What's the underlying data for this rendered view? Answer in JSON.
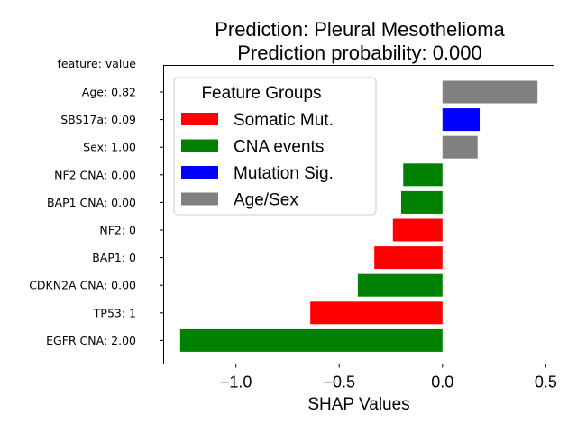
{
  "chart_data": {
    "type": "bar",
    "orientation": "horizontal",
    "title": "Prediction: Pleural Mesothelioma",
    "subtitle": "Prediction probability: 0.000",
    "xlabel": "SHAP Values",
    "ylabel": "",
    "y_header": "feature: value",
    "xlim": [
      -1.35,
      0.54
    ],
    "xticks": [
      -1.0,
      -0.5,
      0.0,
      0.5
    ],
    "xtick_labels": [
      "−1.0",
      "−0.5",
      "0.0",
      "0.5"
    ],
    "grid": false,
    "categories": [
      "Age: 0.82",
      "SBS17a: 0.09",
      "Sex: 1.00",
      "NF2 CNA: 0.00",
      "BAP1 CNA: 0.00",
      "NF2: 0",
      "BAP1: 0",
      "CDKN2A CNA: 0.00",
      "TP53: 1",
      "EGFR CNA: 2.00"
    ],
    "values": [
      0.46,
      0.18,
      0.17,
      -0.19,
      -0.2,
      -0.24,
      -0.33,
      -0.41,
      -0.64,
      -1.27
    ],
    "groups": [
      "Age/Sex",
      "Mutation Sig.",
      "Age/Sex",
      "CNA events",
      "CNA events",
      "Somatic Mut.",
      "Somatic Mut.",
      "CNA events",
      "Somatic Mut.",
      "CNA events"
    ],
    "legend": {
      "title": "Feature Groups",
      "placement": "upper-left",
      "entries": [
        {
          "name": "Somatic Mut.",
          "color": "#ff0000"
        },
        {
          "name": "CNA events",
          "color": "#008000"
        },
        {
          "name": "Mutation Sig.",
          "color": "#0000ff"
        },
        {
          "name": "Age/Sex",
          "color": "#808080"
        }
      ]
    }
  }
}
